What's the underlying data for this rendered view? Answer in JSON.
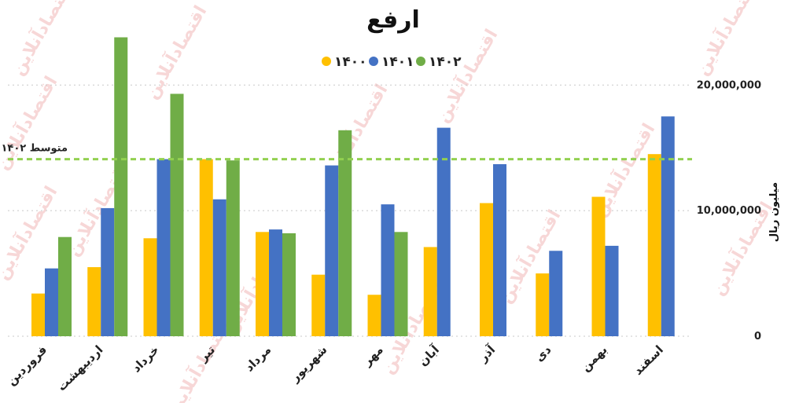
{
  "chart_data": {
    "type": "bar",
    "title": "ارفع",
    "ylabel": "میلیون ریال",
    "xlabel": "",
    "ylim": [
      0,
      24000000
    ],
    "yticks": [
      {
        "value": 0,
        "label": "0"
      },
      {
        "value": 10000000,
        "label": "10,000,000"
      },
      {
        "value": 20000000,
        "label": "20,000,000"
      }
    ],
    "grid": true,
    "legend_position": "top",
    "categories": [
      "فروردین",
      "اردیبهشت",
      "خرداد",
      "تیر",
      "مرداد",
      "شهریور",
      "مهر",
      "آبان",
      "آذر",
      "دی",
      "بهمن",
      "اسفند"
    ],
    "series": [
      {
        "name": "۱۴۰۰",
        "color": "#ffc000",
        "values": [
          3400000,
          5500000,
          7800000,
          14100000,
          8300000,
          4900000,
          3300000,
          7100000,
          10600000,
          5000000,
          11100000,
          14500000
        ]
      },
      {
        "name": "۱۴۰۱",
        "color": "#4472c4",
        "values": [
          5400000,
          10200000,
          14100000,
          10900000,
          8500000,
          13600000,
          10500000,
          16600000,
          13700000,
          6800000,
          7200000,
          17500000
        ]
      },
      {
        "name": "۱۴۰۲",
        "color": "#70ad47",
        "values": [
          7900000,
          23800000,
          19300000,
          14000000,
          8200000,
          16400000,
          8300000,
          null,
          null,
          null,
          null,
          null
        ]
      }
    ],
    "average_line": {
      "label": "متوسط ۱۴۰۲",
      "value": 14100000,
      "color": "#92d050"
    },
    "watermark": "اقتصادآنلاین"
  }
}
